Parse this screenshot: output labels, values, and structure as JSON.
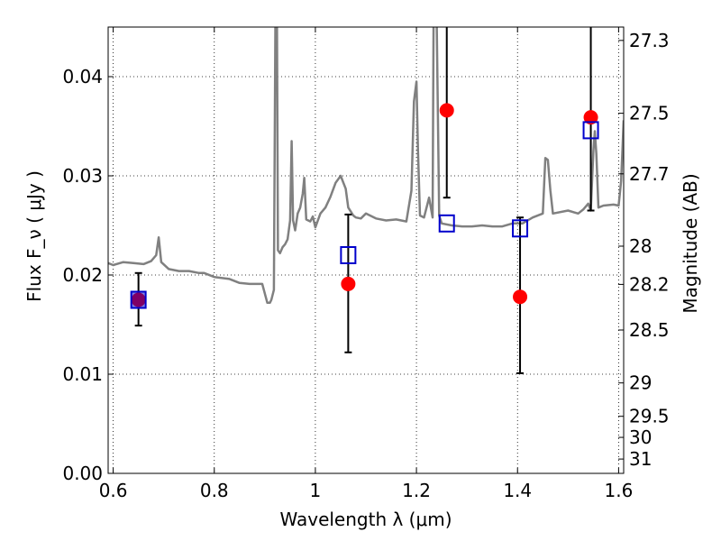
{
  "chart_data": {
    "type": "scatter",
    "xlabel": "Wavelength λ (μm)",
    "ylabel": "Flux F_ν ( μJy )",
    "y2label": "Magnitude (AB)",
    "xlim": [
      0.59,
      1.61
    ],
    "ylim": [
      0.0,
      0.045
    ],
    "xticks": [
      {
        "v": 0.6,
        "label": "0.6"
      },
      {
        "v": 0.8,
        "label": "0.8"
      },
      {
        "v": 1.0,
        "label": "1"
      },
      {
        "v": 1.2,
        "label": "1.2"
      },
      {
        "v": 1.4,
        "label": "1.4"
      },
      {
        "v": 1.6,
        "label": "1.6"
      }
    ],
    "yticks": [
      {
        "v": 0.0,
        "label": "0.00"
      },
      {
        "v": 0.01,
        "label": "0.01"
      },
      {
        "v": 0.02,
        "label": "0.02"
      },
      {
        "v": 0.03,
        "label": "0.03"
      },
      {
        "v": 0.04,
        "label": "0.04"
      }
    ],
    "y2ticks": [
      {
        "mag": 27.3,
        "label": "27.3"
      },
      {
        "mag": 27.5,
        "label": "27.5"
      },
      {
        "mag": 27.7,
        "label": "27.7"
      },
      {
        "mag": 28.0,
        "label": "28"
      },
      {
        "mag": 28.2,
        "label": "28.2"
      },
      {
        "mag": 28.5,
        "label": "28.5"
      },
      {
        "mag": 29.0,
        "label": "29"
      },
      {
        "mag": 29.5,
        "label": "29.5"
      },
      {
        "mag": 30.0,
        "label": "30"
      },
      {
        "mag": 31.0,
        "label": "31"
      }
    ],
    "grid": true,
    "colors": {
      "model": "#808080",
      "observed": "#ff0000",
      "model_phot": "#0000cc",
      "errorbar": "#000000"
    },
    "series": [
      {
        "kind": "line",
        "x": [
          0.59,
          0.6,
          0.62,
          0.64,
          0.66,
          0.675,
          0.685,
          0.69,
          0.695,
          0.71,
          0.73,
          0.75,
          0.77,
          0.78,
          0.8,
          0.83,
          0.85,
          0.87,
          0.88,
          0.895,
          0.905,
          0.91,
          0.913,
          0.918,
          0.921,
          0.924,
          0.926,
          0.93,
          0.935,
          0.94,
          0.945,
          0.95,
          0.953,
          0.956,
          0.96,
          0.965,
          0.97,
          0.975,
          0.978,
          0.982,
          0.99,
          0.995,
          1.0,
          1.005,
          1.01,
          1.02,
          1.03,
          1.04,
          1.05,
          1.06,
          1.065,
          1.07,
          1.075,
          1.08,
          1.09,
          1.1,
          1.12,
          1.14,
          1.16,
          1.18,
          1.19,
          1.195,
          1.2,
          1.203,
          1.207,
          1.215,
          1.225,
          1.232,
          1.234,
          1.236,
          1.24,
          1.245,
          1.25,
          1.27,
          1.29,
          1.31,
          1.33,
          1.35,
          1.37,
          1.39,
          1.41,
          1.43,
          1.45,
          1.455,
          1.46,
          1.465,
          1.47,
          1.5,
          1.52,
          1.53,
          1.54,
          1.545,
          1.55,
          1.553,
          1.556,
          1.56,
          1.57,
          1.59,
          1.6,
          1.605,
          1.61
        ],
        "y": [
          0.0212,
          0.021,
          0.0213,
          0.0212,
          0.0211,
          0.0214,
          0.022,
          0.0238,
          0.0213,
          0.0206,
          0.0204,
          0.0204,
          0.0202,
          0.0202,
          0.0198,
          0.0196,
          0.0192,
          0.0191,
          0.0191,
          0.0191,
          0.0172,
          0.0172,
          0.0175,
          0.0185,
          0.046,
          0.046,
          0.0225,
          0.0222,
          0.0228,
          0.0231,
          0.0236,
          0.0255,
          0.0335,
          0.0255,
          0.0245,
          0.0262,
          0.0268,
          0.0282,
          0.0298,
          0.0256,
          0.0254,
          0.0259,
          0.0248,
          0.0255,
          0.0262,
          0.0268,
          0.0279,
          0.0293,
          0.03,
          0.0287,
          0.0268,
          0.0264,
          0.026,
          0.0258,
          0.0257,
          0.0262,
          0.0257,
          0.0255,
          0.0256,
          0.0254,
          0.0285,
          0.0375,
          0.0395,
          0.0325,
          0.026,
          0.0258,
          0.0278,
          0.0258,
          0.046,
          0.046,
          0.046,
          0.026,
          0.0252,
          0.025,
          0.0249,
          0.0249,
          0.025,
          0.0249,
          0.0249,
          0.0252,
          0.0252,
          0.0258,
          0.0262,
          0.0318,
          0.0316,
          0.0285,
          0.0262,
          0.0265,
          0.0262,
          0.0266,
          0.0272,
          0.0265,
          0.0325,
          0.0345,
          0.0322,
          0.0268,
          0.027,
          0.0271,
          0.027,
          0.0295,
          0.0356
        ]
      },
      {
        "kind": "points",
        "marker": "circle",
        "x": [
          0.65,
          1.065,
          1.26,
          1.405,
          1.545
        ],
        "y": [
          0.0175,
          0.0191,
          0.0366,
          0.0178,
          0.0359
        ],
        "err_low": [
          0.0149,
          0.0122,
          0.0278,
          0.0101,
          0.0265
        ],
        "err_high": [
          0.0202,
          0.0261,
          0.046,
          0.0258,
          0.046
        ]
      },
      {
        "kind": "points",
        "marker": "square",
        "x": [
          0.65,
          1.065,
          1.26,
          1.405,
          1.545
        ],
        "y": [
          0.0175,
          0.022,
          0.0252,
          0.0247,
          0.0346
        ]
      }
    ]
  }
}
